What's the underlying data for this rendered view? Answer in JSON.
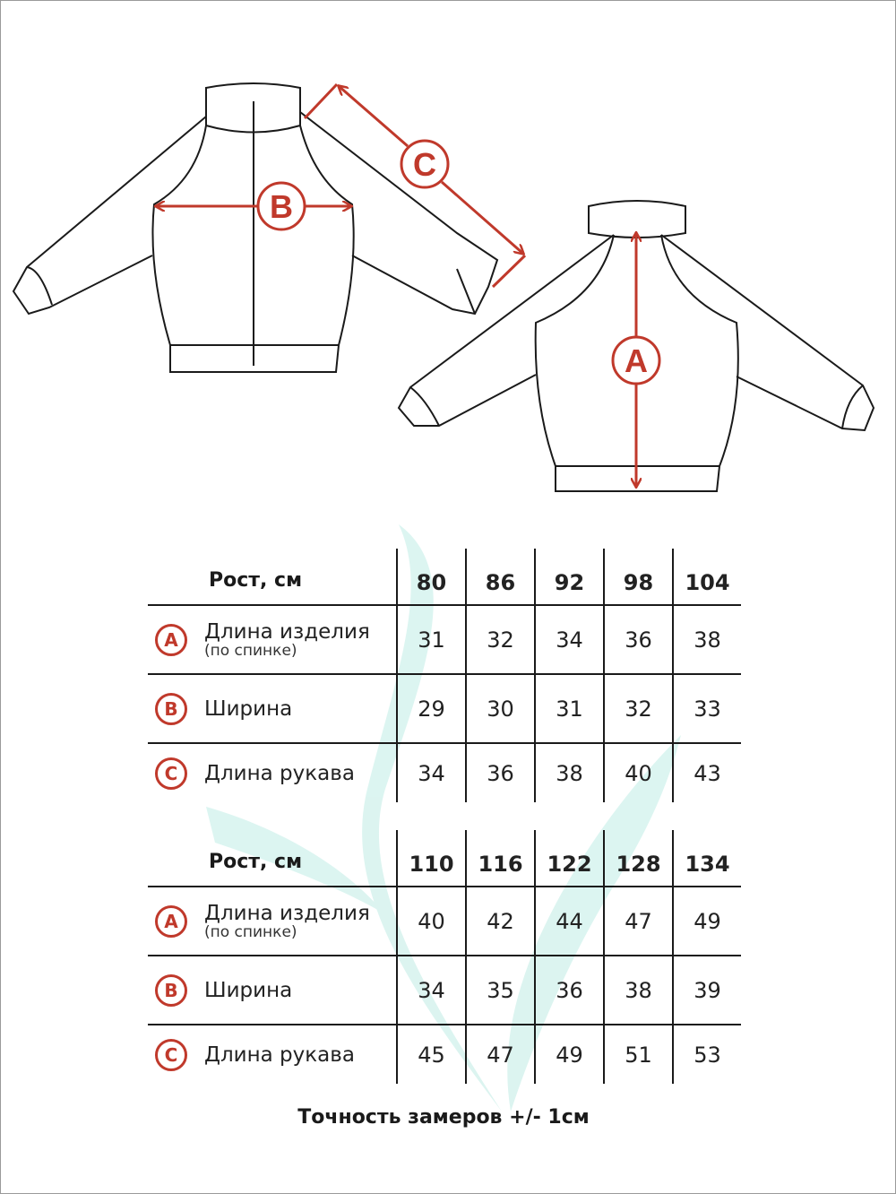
{
  "colors": {
    "accent": "#c0392b",
    "line": "#1a1a1a",
    "watermark": "#d6f3ee"
  },
  "diagram": {
    "markers": [
      {
        "letter": "A",
        "meaning": "Длина изделия"
      },
      {
        "letter": "B",
        "meaning": "Ширина"
      },
      {
        "letter": "C",
        "meaning": "Длина рукава"
      }
    ]
  },
  "tables": [
    {
      "header_label": "Рост, см",
      "sizes": [
        "80",
        "86",
        "92",
        "98",
        "104"
      ],
      "rows": [
        {
          "badge": "A",
          "label": "Длина изделия",
          "sublabel": "(по спинке)",
          "values": [
            "31",
            "32",
            "34",
            "36",
            "38"
          ]
        },
        {
          "badge": "B",
          "label": "Ширина",
          "sublabel": "",
          "values": [
            "29",
            "30",
            "31",
            "32",
            "33"
          ]
        },
        {
          "badge": "C",
          "label": "Длина рукава",
          "sublabel": "",
          "values": [
            "34",
            "36",
            "38",
            "40",
            "43"
          ]
        }
      ]
    },
    {
      "header_label": "Рост, см",
      "sizes": [
        "110",
        "116",
        "122",
        "128",
        "134"
      ],
      "rows": [
        {
          "badge": "A",
          "label": "Длина изделия",
          "sublabel": "(по спинке)",
          "values": [
            "40",
            "42",
            "44",
            "47",
            "49"
          ]
        },
        {
          "badge": "B",
          "label": "Ширина",
          "sublabel": "",
          "values": [
            "34",
            "35",
            "36",
            "38",
            "39"
          ]
        },
        {
          "badge": "C",
          "label": "Длина рукава",
          "sublabel": "",
          "values": [
            "45",
            "47",
            "49",
            "51",
            "53"
          ]
        }
      ]
    }
  ],
  "footer": "Точность замеров +/- 1см"
}
